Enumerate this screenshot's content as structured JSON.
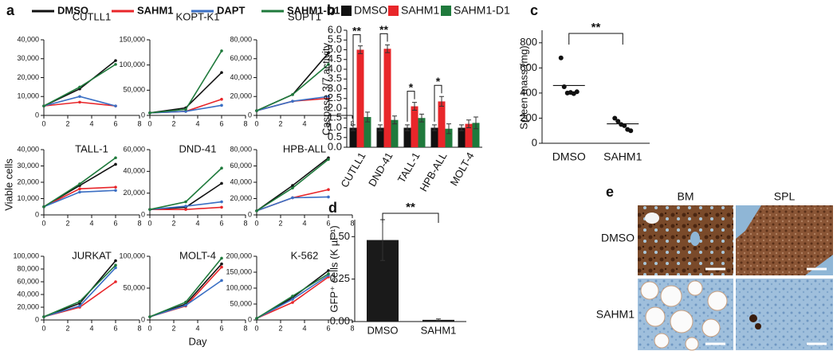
{
  "chart_data": [
    {
      "type": "line",
      "panel": "a",
      "xlabel": "Day",
      "ylabel": "Viable cells",
      "series": [
        {
          "name": "DMSO",
          "color": "#111111"
        },
        {
          "name": "SAHM1",
          "color": "#e8262a"
        },
        {
          "name": "DAPT",
          "color": "#3a6fc4"
        },
        {
          "name": "SAHM1-D1",
          "color": "#1f7a3c"
        }
      ],
      "x": [
        0,
        3,
        6
      ],
      "xlim": [
        0,
        8
      ],
      "xticks": [
        0,
        2,
        4,
        6,
        8
      ],
      "subplots": [
        {
          "title": "CUTLL1",
          "ylim": [
            0,
            40000
          ],
          "yticks": [
            0,
            {
              "value": 10000,
              "label": "10,000"
            },
            {
              "value": 20000,
              "label": "20,000"
            },
            {
              "value": 30000,
              "label": "30,000"
            },
            {
              "value": 40000,
              "label": "40,000"
            }
          ],
          "series": [
            {
              "values": [
                5000,
                14000,
                29000
              ]
            },
            {
              "values": [
                5000,
                7000,
                5000
              ]
            },
            {
              "values": [
                5000,
                10000,
                5000
              ]
            },
            {
              "values": [
                5000,
                15000,
                27000
              ]
            }
          ]
        },
        {
          "title": "KOPT-K1",
          "ylim": [
            0,
            150000
          ],
          "yticks": [
            0,
            {
              "value": 50000,
              "label": "50,000"
            },
            {
              "value": 100000,
              "label": "100,000"
            },
            {
              "value": 150000,
              "label": "150,000"
            }
          ],
          "series": [
            {
              "values": [
                5000,
                15000,
                85000
              ]
            },
            {
              "values": [
                5000,
                8000,
                32000
              ]
            },
            {
              "values": [
                5000,
                8000,
                20000
              ]
            },
            {
              "values": [
                5000,
                12000,
                128000
              ]
            }
          ]
        },
        {
          "title": "SUPT1",
          "ylim": [
            0,
            80000
          ],
          "yticks": [
            0,
            {
              "value": 20000,
              "label": "20,000"
            },
            {
              "value": 40000,
              "label": "40,000"
            },
            {
              "value": 60000,
              "label": "60,000"
            },
            {
              "value": 80000,
              "label": "80,000"
            }
          ],
          "series": [
            {
              "values": [
                5000,
                22000,
                66000
              ]
            },
            {
              "values": [
                5000,
                15000,
                18000
              ]
            },
            {
              "values": [
                5000,
                15000,
                20000
              ]
            },
            {
              "values": [
                5000,
                22000,
                54000
              ]
            }
          ]
        },
        {
          "title": "TALL-1",
          "ylim": [
            0,
            40000
          ],
          "yticks": [
            0,
            {
              "value": 10000,
              "label": "10,000"
            },
            {
              "value": 20000,
              "label": "20,000"
            },
            {
              "value": 30000,
              "label": "30,000"
            },
            {
              "value": 40000,
              "label": "40,000"
            }
          ],
          "series": [
            {
              "values": [
                5000,
                18000,
                31000
              ]
            },
            {
              "values": [
                5000,
                16000,
                17000
              ]
            },
            {
              "values": [
                5000,
                14000,
                15000
              ]
            },
            {
              "values": [
                5000,
                19000,
                35000
              ]
            }
          ]
        },
        {
          "title": "DND-41",
          "ylim": [
            0,
            60000
          ],
          "yticks": [
            0,
            {
              "value": 20000,
              "label": "20,000"
            },
            {
              "value": 40000,
              "label": "40,000"
            },
            {
              "value": 60000,
              "label": "60,000"
            }
          ],
          "series": [
            {
              "values": [
                5000,
                7000,
                29000
              ]
            },
            {
              "values": [
                5000,
                5000,
                7000
              ]
            },
            {
              "values": [
                5000,
                8000,
                12000
              ]
            },
            {
              "values": [
                5000,
                12000,
                43000
              ]
            }
          ]
        },
        {
          "title": "HPB-ALL",
          "ylim": [
            0,
            80000
          ],
          "yticks": [
            0,
            {
              "value": 20000,
              "label": "20,000"
            },
            {
              "value": 40000,
              "label": "40,000"
            },
            {
              "value": 60000,
              "label": "60,000"
            },
            {
              "value": 80000,
              "label": "80,000"
            }
          ],
          "series": [
            {
              "values": [
                5000,
                36000,
                70000
              ]
            },
            {
              "values": [
                5000,
                21000,
                31000
              ]
            },
            {
              "values": [
                5000,
                21000,
                22000
              ]
            },
            {
              "values": [
                5000,
                33000,
                68000
              ]
            }
          ]
        },
        {
          "title": "JURKAT",
          "ylim": [
            0,
            100000
          ],
          "yticks": [
            0,
            {
              "value": 20000,
              "label": "20,000"
            },
            {
              "value": 40000,
              "label": "40,000"
            },
            {
              "value": 60000,
              "label": "60,000"
            },
            {
              "value": 80000,
              "label": "80,000"
            },
            {
              "value": 100000,
              "label": "100,000"
            }
          ],
          "series": [
            {
              "values": [
                5000,
                26000,
                93000
              ]
            },
            {
              "values": [
                5000,
                20000,
                60000
              ]
            },
            {
              "values": [
                5000,
                22000,
                82000
              ]
            },
            {
              "values": [
                5000,
                29000,
                86000
              ]
            }
          ]
        },
        {
          "title": "MOLT-4",
          "ylim": [
            0,
            100000
          ],
          "yticks": [
            0,
            {
              "value": 50000,
              "label": "50,000"
            },
            {
              "value": 100000,
              "label": "100,000"
            }
          ],
          "series": [
            {
              "values": [
                5000,
                25000,
                88000
              ]
            },
            {
              "values": [
                5000,
                22000,
                83000
              ]
            },
            {
              "values": [
                5000,
                23000,
                62000
              ]
            },
            {
              "values": [
                5000,
                28000,
                97000
              ]
            }
          ]
        },
        {
          "title": "K-562",
          "ylim": [
            0,
            200000
          ],
          "yticks": [
            0,
            {
              "value": 50000,
              "label": "50,000"
            },
            {
              "value": 100000,
              "label": "100,000"
            },
            {
              "value": 150000,
              "label": "150,000"
            },
            {
              "value": 200000,
              "label": "200,000"
            }
          ],
          "series": [
            {
              "values": [
                5000,
                70000,
                155000
              ]
            },
            {
              "values": [
                5000,
                55000,
                135000
              ]
            },
            {
              "values": [
                5000,
                65000,
                140000
              ]
            },
            {
              "values": [
                5000,
                75000,
                145000
              ]
            }
          ]
        }
      ]
    },
    {
      "type": "bar",
      "panel": "b",
      "ylabel": "Caspase 3/7 activity",
      "categories": [
        "CUTLL1",
        "DND-41",
        "TALL-1",
        "HPB-ALL",
        "MOLT-4"
      ],
      "series": [
        {
          "name": "DMSO",
          "color": "#111111",
          "values": [
            1.0,
            1.0,
            1.0,
            1.0,
            1.0
          ],
          "errors": [
            0.15,
            0.15,
            0.15,
            0.15,
            0.15
          ]
        },
        {
          "name": "SAHM1",
          "color": "#e8262a",
          "values": [
            5.0,
            5.05,
            2.1,
            2.35,
            1.2
          ],
          "errors": [
            0.2,
            0.2,
            0.2,
            0.25,
            0.2
          ]
        },
        {
          "name": "SAHM1-D1",
          "color": "#1f7a3c",
          "values": [
            1.55,
            1.4,
            1.5,
            0.95,
            1.25
          ],
          "errors": [
            0.25,
            0.2,
            0.2,
            0.25,
            0.3
          ]
        }
      ],
      "significance": [
        "**",
        "**",
        "*",
        "*",
        null
      ],
      "ylim": [
        0,
        6
      ],
      "yticks": [
        {
          "value": 0,
          "label": "0.0"
        },
        0.5,
        {
          "value": 1,
          "label": "1.0"
        },
        1.5,
        {
          "value": 2,
          "label": "2.0"
        },
        2.5,
        {
          "value": 3,
          "label": "3.0"
        },
        3.5,
        {
          "value": 4,
          "label": "4.0"
        },
        4.5,
        {
          "value": 5,
          "label": "5.0"
        },
        5.5,
        {
          "value": 6,
          "label": "6.0"
        }
      ]
    },
    {
      "type": "scatter",
      "panel": "c",
      "ylabel": "Spleen mass (mg)",
      "categories": [
        "DMSO",
        "SAHM1"
      ],
      "points": [
        [
          680,
          450,
          400,
          405,
          395,
          410
        ],
        [
          200,
          175,
          150,
          140,
          110,
          100
        ]
      ],
      "means": [
        460,
        155
      ],
      "significance": "**",
      "color": "#111111",
      "ylim": [
        0,
        900
      ],
      "yticks": [
        0,
        200,
        400,
        600,
        800
      ]
    },
    {
      "type": "bar",
      "panel": "d",
      "ylabel": "GFP⁺ cells (K µl⁻¹)",
      "categories": [
        "DMSO",
        "SAHM1"
      ],
      "values": [
        0.48,
        0.01
      ],
      "errors": [
        0.12,
        0.005
      ],
      "color": "#1a1a1a",
      "significance": "**",
      "ylim": [
        0,
        0.6
      ],
      "yticks": [
        {
          "value": 0,
          "label": "0.00"
        },
        0.25,
        {
          "value": 0.5,
          "label": "0.50"
        }
      ]
    }
  ],
  "image_panel": {
    "panel": "e",
    "columns": [
      "BM",
      "SPL"
    ],
    "rows": [
      "DMSO",
      "SAHM1"
    ]
  }
}
